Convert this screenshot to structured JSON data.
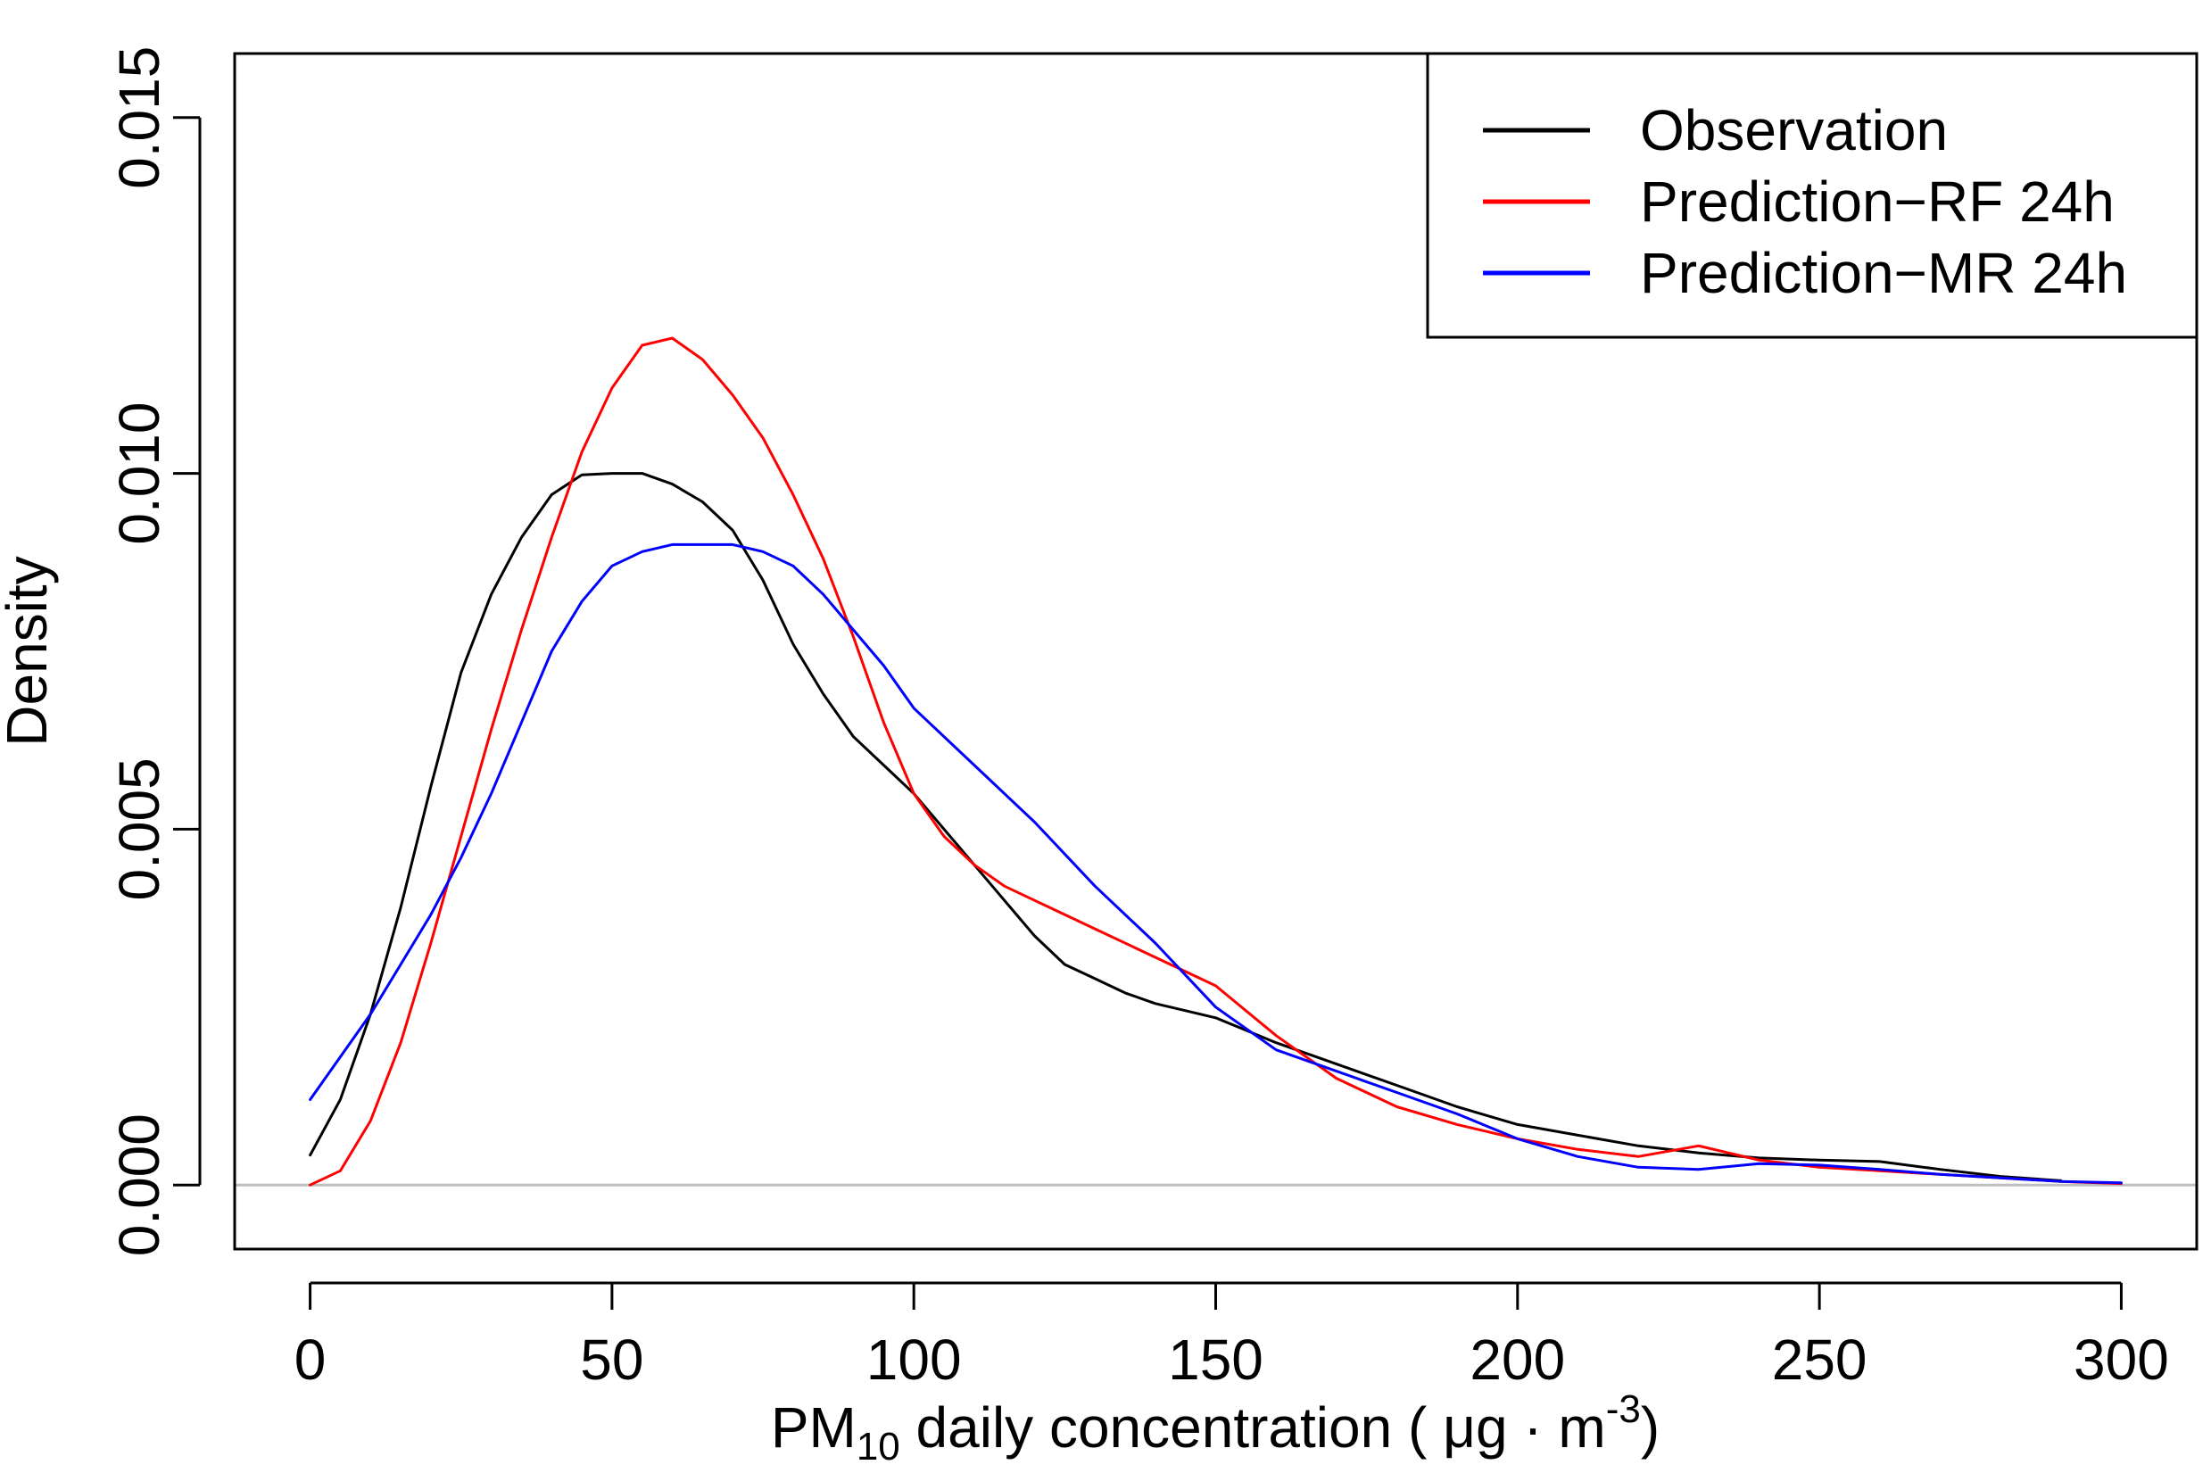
{
  "chart_data": {
    "type": "line",
    "title": "",
    "xlabel": {
      "prefix": "PM",
      "sub": "10",
      "main": " daily concentration ( ",
      "unit_mu": "μ",
      "unit_g": "g",
      "dot": "·",
      "unit_m": "m",
      "sup": "-3",
      "close": ")"
    },
    "ylabel": "Density",
    "xlim": [
      -12.5,
      312.5
    ],
    "ylim": [
      -0.0009,
      0.0159
    ],
    "x_ticks": [
      0,
      50,
      100,
      150,
      200,
      250,
      300
    ],
    "x_tick_labels": [
      "0",
      "50",
      "100",
      "150",
      "200",
      "250",
      "300"
    ],
    "y_ticks": [
      0.0,
      0.005,
      0.01,
      0.015
    ],
    "y_tick_labels": [
      "0.000",
      "0.005",
      "0.010",
      "0.015"
    ],
    "baseline": 0,
    "legend_position": "top-right",
    "series": [
      {
        "name": "Observation",
        "color": "#000000",
        "x": [
          0,
          5,
          10,
          15,
          20,
          25,
          30,
          35,
          40,
          45,
          50,
          55,
          60,
          65,
          70,
          75,
          80,
          85,
          90,
          95,
          100,
          105,
          110,
          115,
          120,
          125,
          130,
          135,
          140,
          145,
          150,
          160,
          170,
          180,
          190,
          200,
          210,
          220,
          230,
          240,
          250,
          260,
          270,
          280,
          290
        ],
        "y": [
          0.00042,
          0.0012,
          0.0024,
          0.0039,
          0.0056,
          0.0072,
          0.0083,
          0.0091,
          0.0097,
          0.00998,
          0.01,
          0.01,
          0.00985,
          0.0096,
          0.0092,
          0.0085,
          0.0076,
          0.0069,
          0.0063,
          0.0059,
          0.0055,
          0.005,
          0.0045,
          0.004,
          0.0035,
          0.0031,
          0.0029,
          0.0027,
          0.00255,
          0.00245,
          0.00235,
          0.002,
          0.0017,
          0.0014,
          0.0011,
          0.00085,
          0.0007,
          0.00055,
          0.00045,
          0.00038,
          0.00035,
          0.00033,
          0.00022,
          0.00012,
          6e-05
        ]
      },
      {
        "name": "Prediction−RF 24h",
        "color": "#ff0000",
        "x": [
          0,
          5,
          10,
          15,
          20,
          25,
          30,
          35,
          40,
          45,
          50,
          55,
          60,
          65,
          70,
          75,
          80,
          85,
          90,
          95,
          100,
          105,
          110,
          115,
          120,
          125,
          130,
          140,
          150,
          160,
          170,
          180,
          190,
          200,
          210,
          220,
          230,
          240,
          250,
          260,
          270,
          280,
          290,
          300
        ],
        "y": [
          0.0,
          0.0002,
          0.0009,
          0.002,
          0.0034,
          0.0049,
          0.0064,
          0.0078,
          0.0091,
          0.0103,
          0.0112,
          0.0118,
          0.0119,
          0.0116,
          0.0111,
          0.0105,
          0.0097,
          0.0088,
          0.0077,
          0.0065,
          0.0055,
          0.0049,
          0.0045,
          0.0042,
          0.004,
          0.0038,
          0.0036,
          0.0032,
          0.0028,
          0.0021,
          0.0015,
          0.0011,
          0.00085,
          0.00065,
          0.0005,
          0.0004,
          0.00055,
          0.00035,
          0.00025,
          0.0002,
          0.00015,
          0.0001,
          5e-05,
          2e-05
        ]
      },
      {
        "name": "Prediction−MR 24h",
        "color": "#0000ff",
        "x": [
          0,
          5,
          10,
          15,
          20,
          25,
          30,
          35,
          40,
          45,
          50,
          55,
          60,
          65,
          70,
          75,
          80,
          85,
          90,
          95,
          100,
          110,
          120,
          130,
          140,
          150,
          160,
          170,
          180,
          190,
          200,
          210,
          220,
          230,
          240,
          250,
          260,
          270,
          280,
          290,
          300
        ],
        "y": [
          0.0012,
          0.0018,
          0.0024,
          0.0031,
          0.0038,
          0.0046,
          0.0055,
          0.0065,
          0.0075,
          0.0082,
          0.0087,
          0.0089,
          0.009,
          0.009,
          0.009,
          0.0089,
          0.0087,
          0.0083,
          0.0078,
          0.0073,
          0.0067,
          0.0059,
          0.0051,
          0.0042,
          0.0034,
          0.0025,
          0.0019,
          0.0016,
          0.0013,
          0.001,
          0.00065,
          0.0004,
          0.00025,
          0.00022,
          0.0003,
          0.00028,
          0.00022,
          0.00015,
          0.0001,
          5e-05,
          3e-05
        ]
      }
    ]
  }
}
